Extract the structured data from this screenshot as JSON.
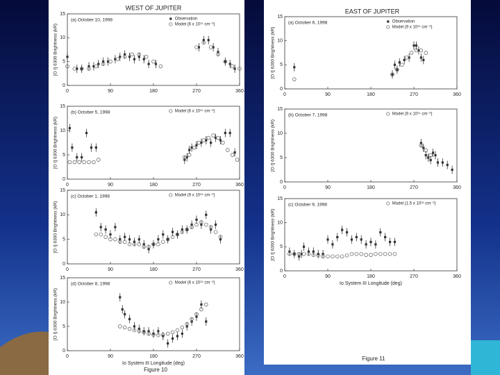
{
  "figures": [
    {
      "title": "WEST OF JUPITER",
      "caption": "Figure 10"
    },
    {
      "title": "EAST OF JUPITER",
      "caption": "Figure 11"
    }
  ],
  "chart_data": [
    {
      "type": "scatter",
      "title": "(a)  October 10, 1998",
      "ylabel": "[O I] 6300   Brightness (kR)",
      "xlim": [
        0,
        360
      ],
      "xticks": [
        0,
        90,
        180,
        270,
        360
      ],
      "ylim": [
        0,
        15
      ],
      "yticks": [
        0,
        5,
        10,
        15
      ],
      "series": [
        {
          "name": "Observation",
          "marker": "square",
          "color": "#333333",
          "x": [
            0,
            20,
            30,
            45,
            55,
            65,
            75,
            85,
            100,
            110,
            120,
            130,
            140,
            150,
            160,
            170,
            185,
            275,
            285,
            295,
            305,
            315,
            330,
            340,
            350
          ],
          "values": [
            6,
            3.5,
            3.5,
            4,
            4,
            4.5,
            5,
            5,
            5.5,
            6,
            6.5,
            6,
            5.5,
            6,
            5.5,
            4.5,
            4.5,
            8,
            9.5,
            9.5,
            8,
            7,
            5,
            4.5,
            3.5
          ]
        },
        {
          "name": "Model (6 x 10¹⁴ cm⁻²)",
          "marker": "circle",
          "color": "#555555",
          "x": [
            0,
            15,
            30,
            45,
            60,
            75,
            90,
            105,
            120,
            135,
            150,
            165,
            180,
            195,
            270,
            285,
            300,
            315,
            330,
            345,
            360
          ],
          "values": [
            4,
            3.5,
            3.5,
            3.5,
            4,
            4.5,
            5,
            5.5,
            6,
            6.5,
            6.5,
            6,
            5,
            4,
            8,
            9,
            8,
            6.5,
            5,
            4,
            3.5
          ]
        }
      ]
    },
    {
      "type": "scatter",
      "title": "(b)  October 5, 1998",
      "ylabel": "[O I] 6300   Brightness (kR)",
      "xlim": [
        0,
        360
      ],
      "xticks": [
        0,
        90,
        180,
        270,
        360
      ],
      "ylim": [
        0,
        15
      ],
      "yticks": [
        0,
        5,
        10,
        15
      ],
      "series": [
        {
          "marker": "square",
          "color": "#333333",
          "x": [
            5,
            10,
            20,
            30,
            40,
            50,
            60,
            245,
            250,
            255,
            260,
            270,
            280,
            290,
            300,
            310,
            320,
            330,
            340,
            350
          ],
          "values": [
            10.5,
            6.5,
            4.5,
            4.5,
            9.5,
            6.5,
            6.5,
            4,
            4.5,
            6,
            6.5,
            7,
            7.5,
            8,
            7.5,
            8.5,
            8,
            9.5,
            9.5,
            5.5
          ]
        },
        {
          "name": "Model (6 x 10¹⁴ cm⁻²)",
          "marker": "circle",
          "color": "#555555",
          "x": [
            5,
            15,
            25,
            35,
            45,
            55,
            65,
            245,
            255,
            265,
            275,
            285,
            295,
            305,
            315,
            325,
            335,
            345,
            355
          ],
          "values": [
            3.5,
            3.5,
            3.5,
            3.5,
            3.5,
            3.5,
            4,
            4.5,
            5,
            6.5,
            7.5,
            8,
            8.5,
            9,
            8.5,
            7.5,
            6,
            5,
            4
          ]
        }
      ]
    },
    {
      "type": "scatter",
      "title": "(c)  October 1, 1998",
      "ylabel": "[O I] 6300   Brightness (kR)",
      "xlim": [
        0,
        360
      ],
      "xticks": [
        0,
        90,
        180,
        270,
        360
      ],
      "ylim": [
        0,
        15
      ],
      "yticks": [
        0,
        5,
        10,
        15
      ],
      "series": [
        {
          "marker": "square",
          "color": "#333333",
          "x": [
            60,
            70,
            80,
            90,
            100,
            110,
            120,
            130,
            140,
            150,
            160,
            170,
            180,
            190,
            200,
            210,
            220,
            230,
            240,
            250,
            260,
            270,
            280,
            290,
            300,
            310,
            320
          ],
          "values": [
            10.5,
            7.5,
            7,
            6,
            7.5,
            5,
            5.5,
            5,
            4.5,
            5,
            4,
            3,
            4,
            5,
            6,
            5,
            6.5,
            6,
            7,
            7,
            8,
            9,
            8,
            10,
            7,
            8,
            5
          ]
        },
        {
          "name": "Model (9 x 10¹⁴ cm⁻²)",
          "marker": "circle",
          "color": "#555555",
          "x": [
            60,
            70,
            80,
            90,
            100,
            110,
            120,
            130,
            140,
            150,
            160,
            170,
            180,
            190,
            200,
            210,
            220,
            230,
            240,
            250,
            260,
            270,
            280,
            290,
            300,
            310,
            320
          ],
          "values": [
            6,
            6,
            5.5,
            5,
            5,
            4.5,
            4.5,
            4,
            4,
            4,
            3.5,
            3.5,
            4,
            4,
            4.5,
            5,
            5.5,
            6,
            6.5,
            7,
            7.5,
            8,
            8.5,
            8,
            7.5,
            6.5,
            5.5
          ]
        }
      ]
    },
    {
      "type": "scatter",
      "title": "(d)  October 8, 1998",
      "ylabel": "[O I] 6300   Brightness (kR)",
      "xlabel": "Io System III Longitude (deg)",
      "xlim": [
        0,
        360
      ],
      "xticks": [
        0,
        90,
        180,
        270,
        360
      ],
      "ylim": [
        0,
        15
      ],
      "yticks": [
        0,
        5,
        10,
        15
      ],
      "series": [
        {
          "marker": "square",
          "color": "#333333",
          "x": [
            110,
            115,
            120,
            130,
            140,
            150,
            160,
            170,
            180,
            190,
            200,
            210,
            220,
            230,
            240,
            250,
            260,
            270,
            280,
            290
          ],
          "values": [
            11,
            8.5,
            7.5,
            6.5,
            5,
            4.5,
            4,
            4,
            3.5,
            4,
            3,
            1.5,
            2.5,
            3,
            3.5,
            5,
            6,
            7,
            9.5,
            6
          ]
        },
        {
          "name": "Model (6 x 10¹⁴ cm⁻²)",
          "marker": "circle",
          "color": "#555555",
          "x": [
            110,
            120,
            130,
            140,
            150,
            160,
            170,
            180,
            190,
            200,
            210,
            220,
            230,
            240,
            250,
            260,
            270,
            280,
            290
          ],
          "values": [
            5,
            4.8,
            4.5,
            4.2,
            4,
            3.8,
            3.5,
            3.3,
            3.2,
            3.3,
            3.5,
            3.8,
            4.2,
            4.8,
            5.5,
            6.5,
            7.5,
            8.5,
            9.5
          ]
        }
      ]
    },
    {
      "type": "scatter",
      "title": "(a)  October 6, 1998",
      "ylabel": "[O I] 6300   Brightness (kR)",
      "xlim": [
        0,
        360
      ],
      "xticks": [
        0,
        90,
        180,
        270,
        360
      ],
      "ylim": [
        0,
        15
      ],
      "yticks": [
        0,
        5,
        10,
        15
      ],
      "series": [
        {
          "name": "Observation",
          "marker": "square",
          "color": "#333333",
          "x": [
            20,
            225,
            230,
            235,
            240,
            250,
            260,
            270,
            275,
            280,
            285,
            290
          ],
          "values": [
            4.5,
            3,
            5,
            4,
            5.5,
            6,
            6.5,
            9,
            9,
            8,
            6.5,
            6
          ]
        },
        {
          "name": "Model (9 x 10¹⁴ cm⁻²)",
          "marker": "circle",
          "color": "#555555",
          "x": [
            20,
            225,
            235,
            245,
            255,
            265,
            275,
            285,
            295
          ],
          "values": [
            2,
            3,
            4,
            5,
            6.5,
            7.5,
            8,
            8,
            7.5
          ]
        }
      ]
    },
    {
      "type": "scatter",
      "title": "(b)  October 7, 1998",
      "ylabel": "[O I] 6300   Brightness (kR)",
      "xlim": [
        0,
        360
      ],
      "xticks": [
        0,
        90,
        180,
        270,
        360
      ],
      "ylim": [
        0,
        15
      ],
      "yticks": [
        0,
        5,
        10,
        15
      ],
      "series": [
        {
          "marker": "square",
          "color": "#333333",
          "x": [
            285,
            290,
            295,
            300,
            305,
            310,
            315,
            320,
            330,
            340,
            350
          ],
          "values": [
            8,
            7,
            5.5,
            5,
            4.5,
            6,
            5.5,
            4,
            4,
            3.5,
            2.5
          ]
        },
        {
          "name": "Model (9 x 10¹⁴ cm⁻²)",
          "marker": "circle",
          "color": "#555555",
          "x": [
            285,
            295,
            305
          ],
          "values": [
            7.5,
            6.5,
            5.5
          ]
        }
      ]
    },
    {
      "type": "scatter",
      "title": "(c)  October 9, 1998",
      "ylabel": "[O I] 6300   Brightness (kR)",
      "xlabel": "Io System III Longitude (deg)",
      "xlim": [
        0,
        360
      ],
      "xticks": [
        0,
        90,
        180,
        270,
        360
      ],
      "ylim": [
        0,
        15
      ],
      "yticks": [
        0,
        5,
        10,
        15
      ],
      "series": [
        {
          "marker": "square",
          "color": "#333333",
          "x": [
            10,
            20,
            30,
            35,
            40,
            50,
            60,
            70,
            80,
            90,
            100,
            110,
            120,
            130,
            140,
            150,
            160,
            170,
            180,
            190,
            200,
            210,
            220,
            230
          ],
          "values": [
            4,
            3.5,
            3,
            3.5,
            5,
            4,
            4,
            3.5,
            3.5,
            6.5,
            5.5,
            7,
            8.5,
            8,
            6.5,
            7,
            6.5,
            5.5,
            6,
            5.5,
            8,
            7,
            6,
            6
          ]
        },
        {
          "name": "Model (1.5 x 10¹⁵ cm⁻²)",
          "marker": "circle",
          "color": "#555555",
          "x": [
            10,
            20,
            30,
            40,
            50,
            60,
            70,
            80,
            90,
            100,
            110,
            120,
            130,
            140,
            150,
            160,
            170,
            180,
            190,
            200,
            210,
            220,
            230
          ],
          "values": [
            3.5,
            3.5,
            3.5,
            3.5,
            3.5,
            3.3,
            3.2,
            3,
            3,
            3,
            3,
            3,
            3.2,
            3.5,
            3.5,
            3.5,
            3.3,
            3.3,
            3.5,
            3.5,
            3.5,
            3.5,
            3.5
          ]
        }
      ]
    }
  ]
}
